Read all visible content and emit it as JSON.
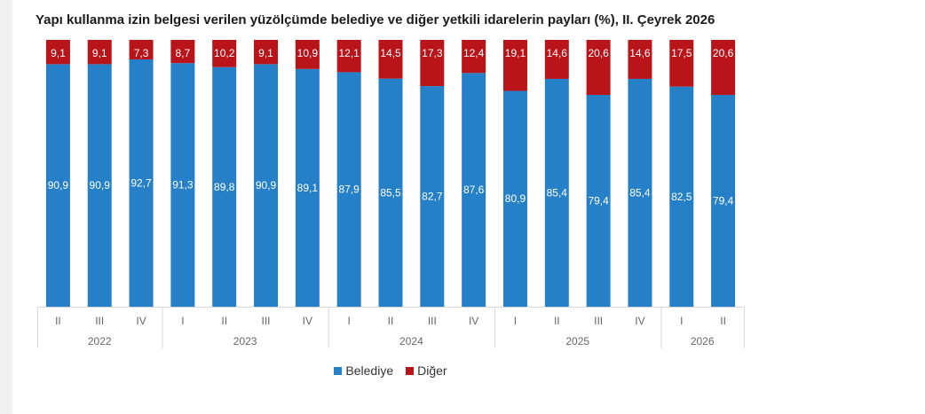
{
  "title": "Yapı kullanma izin belgesi verilen yüzölçümde belediye ve diğer yetkili idarelerin payları (%), II. Çeyrek 2026",
  "chart_data": {
    "type": "bar",
    "stacked": true,
    "categories": [
      "II",
      "III",
      "IV",
      "I",
      "II",
      "III",
      "IV",
      "I",
      "II",
      "III",
      "IV",
      "I",
      "II",
      "III",
      "IV",
      "I",
      "II"
    ],
    "groups": [
      {
        "label": "2022",
        "count": 3
      },
      {
        "label": "2023",
        "count": 4
      },
      {
        "label": "2024",
        "count": 4
      },
      {
        "label": "2025",
        "count": 4
      },
      {
        "label": "2026",
        "count": 2
      }
    ],
    "series": [
      {
        "name": "Belediye",
        "color": "#2680c7",
        "values": [
          90.9,
          90.9,
          92.7,
          91.3,
          89.8,
          90.9,
          89.1,
          87.9,
          85.5,
          82.7,
          87.6,
          80.9,
          85.4,
          79.4,
          85.4,
          82.5,
          79.4
        ]
      },
      {
        "name": "Diğer",
        "color": "#b8141a",
        "values": [
          9.1,
          9.1,
          7.3,
          8.7,
          10.2,
          9.1,
          10.9,
          12.1,
          14.5,
          17.3,
          12.4,
          19.1,
          14.6,
          20.6,
          14.6,
          17.5,
          20.6
        ]
      }
    ],
    "ylim": [
      0,
      100
    ],
    "legend_position": "bottom",
    "data_labels": true,
    "grid": false
  }
}
